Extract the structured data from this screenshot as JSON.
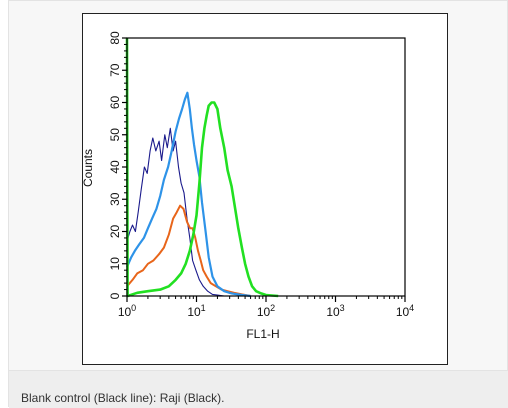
{
  "caption": "Blank control (Black line): Raji (Black).",
  "chart_data": {
    "type": "line",
    "title": "",
    "xlabel": "FL1-H",
    "ylabel": "Counts",
    "xscale": "log",
    "xlim": [
      1,
      10000
    ],
    "ylim": [
      0,
      80
    ],
    "xticks": [
      {
        "value": 1,
        "base": "10",
        "exp": "0"
      },
      {
        "value": 10,
        "base": "10",
        "exp": "1"
      },
      {
        "value": 100,
        "base": "10",
        "exp": "2"
      },
      {
        "value": 1000,
        "base": "10",
        "exp": "3"
      },
      {
        "value": 10000,
        "base": "10",
        "exp": "4"
      }
    ],
    "yticks": [
      "0",
      "10",
      "20",
      "30",
      "40",
      "50",
      "60",
      "70",
      "80"
    ],
    "grid": false,
    "legend": "none",
    "series": [
      {
        "color": "#1a1a8c",
        "width": 1.1,
        "points": [
          [
            1.0,
            17
          ],
          [
            1.1,
            20
          ],
          [
            1.2,
            22
          ],
          [
            1.32,
            20
          ],
          [
            1.45,
            26
          ],
          [
            1.6,
            33
          ],
          [
            1.78,
            40
          ],
          [
            1.95,
            38
          ],
          [
            2.15,
            45
          ],
          [
            2.35,
            49
          ],
          [
            2.6,
            45
          ],
          [
            2.9,
            48
          ],
          [
            3.15,
            42
          ],
          [
            3.5,
            50
          ],
          [
            3.8,
            46
          ],
          [
            4.2,
            52
          ],
          [
            4.6,
            45
          ],
          [
            5.0,
            48
          ],
          [
            5.5,
            40
          ],
          [
            6.0,
            35
          ],
          [
            6.6,
            32
          ],
          [
            7.3,
            24
          ],
          [
            8.0,
            18
          ],
          [
            8.8,
            11
          ],
          [
            9.8,
            8
          ],
          [
            11.0,
            5
          ],
          [
            12.5,
            3
          ],
          [
            14.5,
            1.5
          ],
          [
            17.0,
            0.5
          ],
          [
            20.0,
            0.3
          ],
          [
            25.0,
            0
          ]
        ]
      },
      {
        "color": "#e8651a",
        "width": 2,
        "points": [
          [
            1.0,
            3
          ],
          [
            1.2,
            5
          ],
          [
            1.4,
            7
          ],
          [
            1.7,
            8
          ],
          [
            2.0,
            10
          ],
          [
            2.4,
            11
          ],
          [
            2.9,
            13
          ],
          [
            3.4,
            15
          ],
          [
            4.0,
            19
          ],
          [
            4.6,
            24
          ],
          [
            5.2,
            26
          ],
          [
            5.8,
            28
          ],
          [
            6.5,
            27
          ],
          [
            7.3,
            23
          ],
          [
            8.1,
            21
          ],
          [
            8.8,
            21
          ],
          [
            9.6,
            18
          ],
          [
            10.5,
            14
          ],
          [
            11.5,
            11
          ],
          [
            12.5,
            8
          ],
          [
            14.0,
            6
          ],
          [
            16.0,
            4
          ],
          [
            19.0,
            3
          ],
          [
            23.0,
            2
          ],
          [
            28.0,
            1.5
          ],
          [
            35.0,
            1
          ],
          [
            45.0,
            0.5
          ],
          [
            60.0,
            0
          ]
        ]
      },
      {
        "color": "#2e93e8",
        "width": 2.2,
        "points": [
          [
            1.0,
            9
          ],
          [
            1.15,
            12
          ],
          [
            1.3,
            14
          ],
          [
            1.5,
            16
          ],
          [
            1.75,
            18
          ],
          [
            2.0,
            21
          ],
          [
            2.3,
            24
          ],
          [
            2.65,
            27
          ],
          [
            3.0,
            31
          ],
          [
            3.4,
            36
          ],
          [
            3.9,
            40
          ],
          [
            4.4,
            45
          ],
          [
            5.0,
            51
          ],
          [
            5.6,
            55
          ],
          [
            6.2,
            58
          ],
          [
            6.8,
            61
          ],
          [
            7.4,
            63
          ],
          [
            8.0,
            58
          ],
          [
            8.6,
            52
          ],
          [
            9.2,
            47
          ],
          [
            10.0,
            42
          ],
          [
            11.0,
            37
          ],
          [
            12.0,
            29
          ],
          [
            13.5,
            20
          ],
          [
            15.0,
            12
          ],
          [
            17.0,
            6
          ],
          [
            20.0,
            3
          ],
          [
            25.0,
            1.5
          ],
          [
            32.0,
            0.8
          ],
          [
            45.0,
            0.3
          ],
          [
            60.0,
            0
          ]
        ]
      },
      {
        "color": "#22e022",
        "width": 2.6,
        "points": [
          [
            1.0,
            80
          ],
          [
            1.02,
            0
          ],
          [
            1.4,
            1
          ],
          [
            2.0,
            1.5
          ],
          [
            3.0,
            2
          ],
          [
            4.0,
            3
          ],
          [
            5.0,
            5
          ],
          [
            6.0,
            7
          ],
          [
            7.0,
            10
          ],
          [
            8.0,
            14
          ],
          [
            9.0,
            19
          ],
          [
            10.0,
            25
          ],
          [
            11.0,
            35
          ],
          [
            12.0,
            46
          ],
          [
            13.0,
            52
          ],
          [
            14.0,
            56
          ],
          [
            15.0,
            59
          ],
          [
            16.5,
            60
          ],
          [
            18.0,
            60
          ],
          [
            20.0,
            58
          ],
          [
            22.0,
            52
          ],
          [
            25.0,
            46
          ],
          [
            28.0,
            39
          ],
          [
            32.0,
            34
          ],
          [
            36.0,
            27
          ],
          [
            40.0,
            21
          ],
          [
            45.0,
            15
          ],
          [
            50.0,
            10
          ],
          [
            56.0,
            6
          ],
          [
            63.0,
            3
          ],
          [
            72.0,
            1.5
          ],
          [
            85.0,
            0.8
          ],
          [
            100.0,
            0.3
          ],
          [
            150.0,
            0
          ]
        ]
      }
    ]
  }
}
